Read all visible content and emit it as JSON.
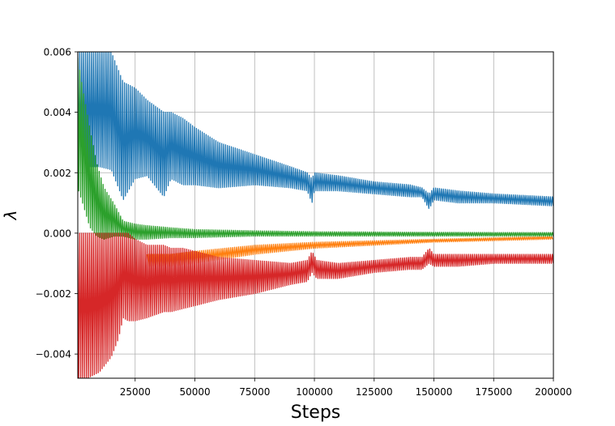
{
  "chart_data": {
    "type": "line",
    "title": "",
    "xlabel": "Steps",
    "ylabel": "λ",
    "xlim": [
      1000,
      200000
    ],
    "ylim": [
      -0.0048,
      0.006
    ],
    "xticks": [
      25000,
      50000,
      75000,
      100000,
      125000,
      150000,
      175000,
      200000
    ],
    "xtick_labels": [
      "25000",
      "50000",
      "75000",
      "100000",
      "125000",
      "150000",
      "175000",
      "200000"
    ],
    "yticks": [
      -0.004,
      -0.002,
      0.0,
      0.002,
      0.004,
      0.006
    ],
    "ytick_labels": [
      "−0.004",
      "−0.002",
      "0.000",
      "0.002",
      "0.004",
      "0.006"
    ],
    "grid": true,
    "series": [
      {
        "color": "#1f77b4",
        "style": "oscillating band",
        "x": [
          1000,
          5000,
          10000,
          15000,
          20000,
          25000,
          30000,
          37000,
          40000,
          45000,
          50000,
          60000,
          75000,
          90000,
          97000,
          99000,
          100000,
          110000,
          125000,
          140000,
          145000,
          148000,
          150000,
          160000,
          175000,
          200000
        ],
        "upper": [
          0.006,
          0.006,
          0.006,
          0.006,
          0.005,
          0.0048,
          0.0044,
          0.004,
          0.004,
          0.0038,
          0.0035,
          0.003,
          0.0026,
          0.0022,
          0.002,
          0.0018,
          0.002,
          0.0019,
          0.0017,
          0.0016,
          0.0015,
          0.0013,
          0.0015,
          0.0014,
          0.0013,
          0.0012
        ],
        "lower": [
          0.0022,
          0.0022,
          0.0022,
          0.0021,
          0.0011,
          0.0018,
          0.0019,
          0.0012,
          0.0018,
          0.0016,
          0.0016,
          0.0015,
          0.0016,
          0.0015,
          0.0014,
          0.001,
          0.0014,
          0.0014,
          0.0013,
          0.0012,
          0.0012,
          0.0008,
          0.0011,
          0.001,
          0.001,
          0.0009
        ]
      },
      {
        "color": "#ff7f0e",
        "style": "oscillating band",
        "x": [
          30000,
          40000,
          50000,
          75000,
          100000,
          125000,
          150000,
          175000,
          200000
        ],
        "upper": [
          -0.0007,
          -0.0007,
          -0.0006,
          -0.0004,
          -0.0003,
          -0.00025,
          -0.0002,
          -0.00015,
          -0.0001
        ],
        "lower": [
          -0.0011,
          -0.0011,
          -0.001,
          -0.0007,
          -0.0005,
          -0.0004,
          -0.0003,
          -0.00025,
          -0.0002
        ]
      },
      {
        "color": "#2ca02c",
        "style": "oscillating band",
        "x": [
          1000,
          3000,
          6000,
          9000,
          12000,
          16000,
          20000,
          25000,
          30000,
          40000,
          50000,
          75000,
          100000,
          150000,
          200000
        ],
        "upper": [
          0.0058,
          0.0048,
          0.0035,
          0.0023,
          0.0015,
          0.001,
          0.0004,
          0.0003,
          0.00025,
          0.00018,
          0.00012,
          8e-05,
          5e-05,
          3e-05,
          2e-05
        ],
        "lower": [
          0.0015,
          0.001,
          0.0002,
          -0.0001,
          -0.0002,
          -0.0001,
          -0.0001,
          -0.0002,
          -0.0002,
          -0.00015,
          -0.00015,
          -0.0001,
          -0.0001,
          -0.0001,
          -0.0001
        ]
      },
      {
        "color": "#d62728",
        "style": "oscillating band",
        "x": [
          1000,
          5000,
          10000,
          15000,
          18000,
          20000,
          22000,
          25000,
          30000,
          37000,
          40000,
          45000,
          50000,
          60000,
          75000,
          90000,
          97000,
          99000,
          101000,
          110000,
          125000,
          140000,
          145000,
          148000,
          150000,
          160000,
          175000,
          200000
        ],
        "upper": [
          0.0,
          0.0,
          0.0,
          0.0,
          0.0,
          0.0,
          0.0,
          -0.0002,
          -0.0004,
          -0.0004,
          -0.0005,
          -0.0005,
          -0.0006,
          -0.0008,
          -0.0009,
          -0.001,
          -0.0009,
          -0.0006,
          -0.0009,
          -0.001,
          -0.0009,
          -0.0008,
          -0.0008,
          -0.0005,
          -0.0007,
          -0.0007,
          -0.0007,
          -0.0007
        ],
        "lower": [
          -0.0048,
          -0.0048,
          -0.0046,
          -0.0041,
          -0.0035,
          -0.0028,
          -0.0029,
          -0.0029,
          -0.0028,
          -0.0026,
          -0.0026,
          -0.0025,
          -0.0024,
          -0.0022,
          -0.002,
          -0.0017,
          -0.0016,
          -0.0013,
          -0.0015,
          -0.0015,
          -0.0013,
          -0.0012,
          -0.0012,
          -0.001,
          -0.0011,
          -0.0011,
          -0.001,
          -0.001
        ]
      }
    ]
  }
}
